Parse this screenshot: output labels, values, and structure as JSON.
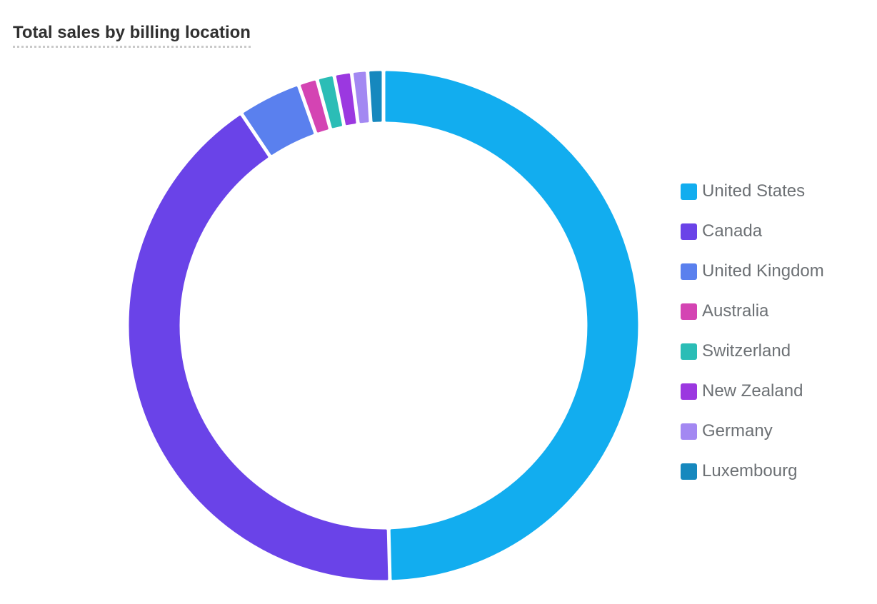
{
  "title": "Total sales by billing location",
  "chart_data": {
    "type": "pie",
    "variant": "donut",
    "title": "Total sales by billing location",
    "legend_position": "right",
    "series": [
      {
        "name": "United States",
        "value": 49.6,
        "color": "#12ADEF"
      },
      {
        "name": "Canada",
        "value": 41.0,
        "color": "#6A43E8"
      },
      {
        "name": "United Kingdom",
        "value": 4.0,
        "color": "#5A80EE"
      },
      {
        "name": "Australia",
        "value": 1.2,
        "color": "#D444B3"
      },
      {
        "name": "Switzerland",
        "value": 1.1,
        "color": "#2BBDB6"
      },
      {
        "name": "New Zealand",
        "value": 1.1,
        "color": "#9B38E0"
      },
      {
        "name": "Germany",
        "value": 1.0,
        "color": "#A388F2"
      },
      {
        "name": "Luxembourg",
        "value": 1.0,
        "color": "#1688BE"
      }
    ]
  }
}
